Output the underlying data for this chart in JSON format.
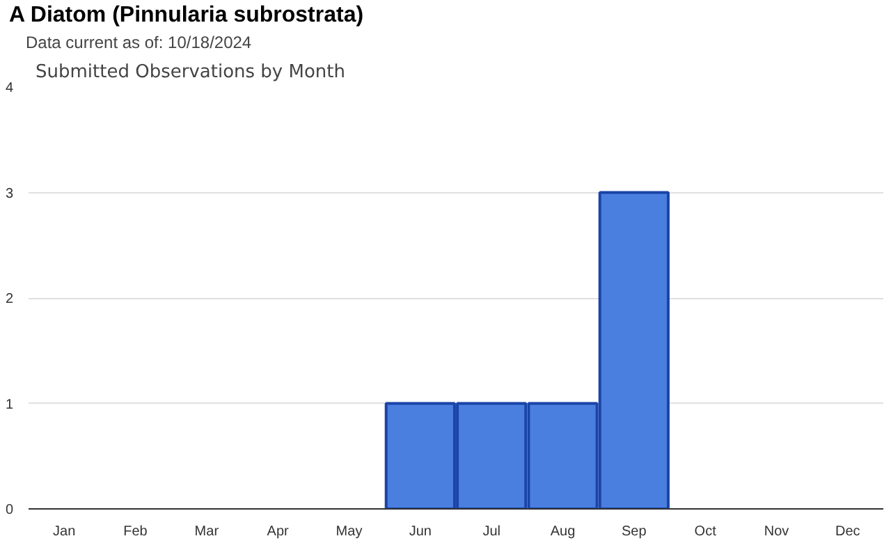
{
  "chart_data": {
    "type": "bar",
    "title": "A Diatom   (Pinnularia subrostrata)",
    "subtitle": "Data current as of: 10/18/2024",
    "annotations": [
      "Submitted Observations by Month"
    ],
    "categories": [
      "Jan",
      "Feb",
      "Mar",
      "Apr",
      "May",
      "Jun",
      "Jul",
      "Aug",
      "Sep",
      "Oct",
      "Nov",
      "Dec"
    ],
    "values": [
      0,
      0,
      0,
      0,
      0,
      1,
      1,
      1,
      3,
      0,
      0,
      0
    ],
    "color": "#4a7fe0",
    "ylim": [
      0,
      4
    ],
    "yticks": [
      0,
      1,
      2,
      3,
      4
    ],
    "grid": "y"
  }
}
